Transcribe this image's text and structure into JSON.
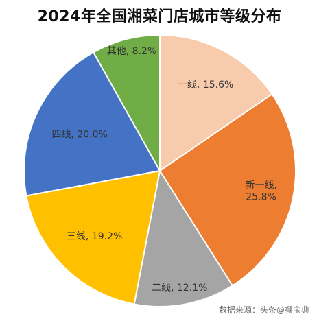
{
  "chart_data": {
    "type": "pie",
    "title": "2024年全国湘菜门店城市等级分布",
    "slices": [
      {
        "name": "一线",
        "value": 15.6,
        "label_lines": [
          "一线, 15.6%"
        ],
        "color": "#F7CBAC"
      },
      {
        "name": "新一线",
        "value": 25.8,
        "label_lines": [
          "新一线,",
          "25.8%"
        ],
        "color": "#ED7D31"
      },
      {
        "name": "二线",
        "value": 12.1,
        "label_lines": [
          "二线, 12.1%"
        ],
        "color": "#A5A5A5"
      },
      {
        "name": "三线",
        "value": 19.2,
        "label_lines": [
          "三线, 19.2%"
        ],
        "color": "#FFC000"
      },
      {
        "name": "四线",
        "value": 20.0,
        "label_lines": [
          "四线, 20.0%"
        ],
        "color": "#4472C4"
      },
      {
        "name": "其他",
        "value": 8.2,
        "label_lines": [
          "其他, 8.2%"
        ],
        "color": "#70AD47"
      }
    ]
  },
  "source_text": "数据来源：头条@餐宝典"
}
